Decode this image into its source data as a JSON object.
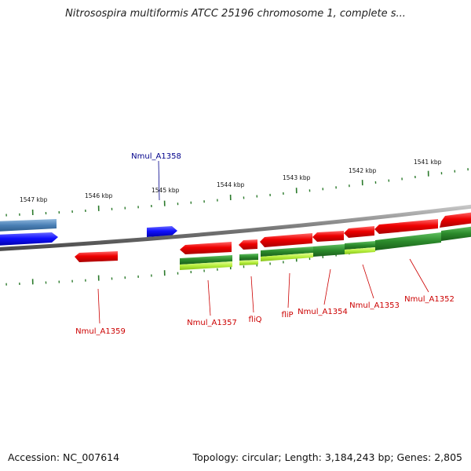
{
  "title": "Nitrosospira multiformis ATCC 25196 chromosome 1, complete s...",
  "footer": {
    "accession": "Accession: NC_007614",
    "stats": "Topology: circular; Length: 3,184,243 bp; Genes: 2,805"
  },
  "colors": {
    "backbone": "#8a8a8a",
    "gene_forward_red": "#e60000",
    "gene_blue": "#1a1aff",
    "gene_steelblue": "#4a7fb5",
    "orf_green": "#2b8a2b",
    "orf_lime": "#a8e636",
    "tick": "#2b7a2b",
    "label_red": "#cc0000",
    "label_blue": "#00008b"
  },
  "kbp_labels": [
    "1547 kbp",
    "1546 kbp",
    "1545 kbp",
    "1544 kbp",
    "1543 kbp",
    "1542 kbp",
    "1541 kbp"
  ],
  "gene_labels": [
    {
      "text": "Nmul_A1358",
      "color": "blue"
    },
    {
      "text": "Nmul_A1359",
      "color": "red"
    },
    {
      "text": "Nmul_A1357",
      "color": "red"
    },
    {
      "text": "fliQ",
      "color": "red"
    },
    {
      "text": "fliP",
      "color": "red"
    },
    {
      "text": "Nmul_A1354",
      "color": "red"
    },
    {
      "text": "Nmul_A1353",
      "color": "red"
    },
    {
      "text": "Nmul_A1352",
      "color": "red"
    }
  ]
}
